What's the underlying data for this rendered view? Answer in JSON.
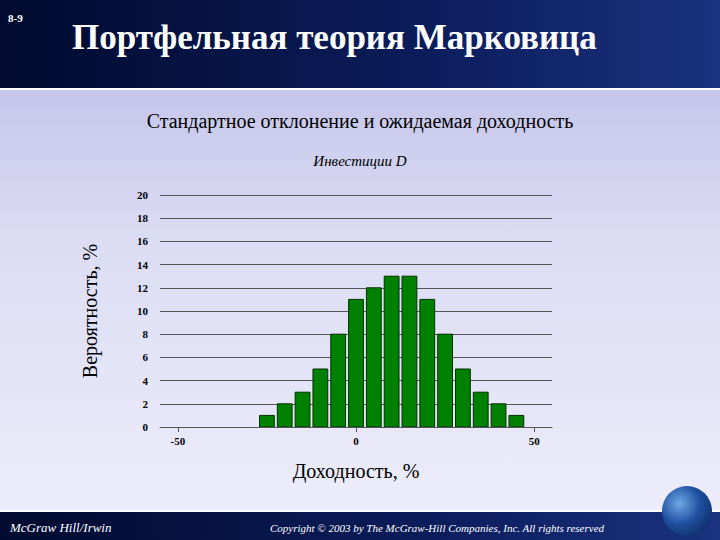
{
  "slide": {
    "number": "8-9",
    "title": "Портфельная теория Марковица",
    "subtitle": "Стандартное отклонение и ожидаемая доходность",
    "footer_left": "McGraw Hill/Irwin",
    "footer_right": "Copyright © 2003 by The McGraw-Hill Companies, Inc. All rights reserved"
  },
  "chart_data": {
    "type": "histogram",
    "title": "Инвестиции D",
    "x_label": "Доходность, %",
    "y_label": "Вероятность, %",
    "bins": [
      -27.5,
      -22.5,
      -17.5,
      -12.5,
      -7.5,
      -2.5,
      2.5,
      7.5,
      12.5,
      17.5,
      22.5,
      27.5,
      32.5,
      37.5,
      42.5,
      47.5
    ],
    "values": [
      1,
      2,
      3,
      5,
      8,
      11,
      12,
      13,
      13,
      11,
      8,
      5,
      3,
      2,
      1
    ],
    "color": "#008000",
    "xlim": [
      -55,
      55
    ],
    "xticks": [
      -50,
      0,
      50
    ],
    "ylim": [
      0,
      20
    ],
    "yticks": [
      0,
      2,
      4,
      6,
      8,
      10,
      12,
      14,
      16,
      18,
      20
    ],
    "grid": true
  }
}
